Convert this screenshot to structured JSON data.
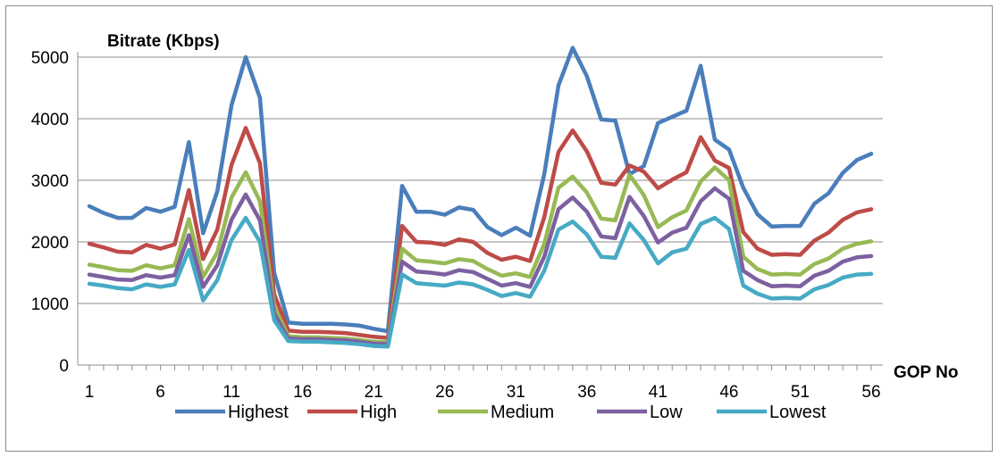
{
  "chart_data": {
    "type": "line",
    "ylabel": "Bitrate (Kbps)",
    "xlabel": "GOP No",
    "ylim": [
      0,
      5000
    ],
    "yticks": [
      0,
      1000,
      2000,
      3000,
      4000,
      5000
    ],
    "xlim": [
      1,
      56
    ],
    "xtick_labels": [
      1,
      6,
      11,
      16,
      21,
      26,
      31,
      36,
      41,
      46,
      51,
      56
    ],
    "grid": "horizontal",
    "legend_position": "bottom",
    "x": [
      1,
      2,
      3,
      4,
      5,
      6,
      7,
      8,
      9,
      10,
      11,
      12,
      13,
      14,
      15,
      16,
      17,
      18,
      19,
      20,
      21,
      22,
      23,
      24,
      25,
      26,
      27,
      28,
      29,
      30,
      31,
      32,
      33,
      34,
      35,
      36,
      37,
      38,
      39,
      40,
      41,
      42,
      43,
      44,
      45,
      46,
      47,
      48,
      49,
      50,
      51,
      52,
      53,
      54,
      55,
      56
    ],
    "series": [
      {
        "name": "Highest",
        "color": "#4a7ebb",
        "values": [
          2580,
          2470,
          2390,
          2390,
          2550,
          2490,
          2570,
          3620,
          2140,
          2820,
          4220,
          5000,
          4340,
          1500,
          690,
          670,
          670,
          670,
          660,
          640,
          590,
          550,
          2910,
          2490,
          2490,
          2440,
          2560,
          2520,
          2240,
          2110,
          2230,
          2100,
          3100,
          4540,
          5150,
          4690,
          3990,
          3970,
          3100,
          3230,
          3930,
          4030,
          4130,
          4860,
          3660,
          3500,
          2880,
          2450,
          2250,
          2260,
          2260,
          2620,
          2790,
          3120,
          3330,
          3430
        ]
      },
      {
        "name": "High",
        "color": "#be4b48",
        "values": [
          1970,
          1910,
          1840,
          1830,
          1950,
          1890,
          1960,
          2840,
          1720,
          2200,
          3250,
          3850,
          3280,
          1150,
          560,
          540,
          540,
          530,
          520,
          490,
          460,
          440,
          2260,
          2000,
          1990,
          1950,
          2040,
          2000,
          1820,
          1710,
          1760,
          1690,
          2400,
          3460,
          3810,
          3470,
          2960,
          2930,
          3240,
          3140,
          2870,
          3010,
          3130,
          3700,
          3320,
          3200,
          2160,
          1890,
          1790,
          1800,
          1790,
          2020,
          2150,
          2360,
          2480,
          2530
        ]
      },
      {
        "name": "Medium",
        "color": "#98b954",
        "values": [
          1630,
          1590,
          1540,
          1530,
          1620,
          1570,
          1620,
          2370,
          1430,
          1830,
          2720,
          3130,
          2660,
          950,
          470,
          450,
          450,
          440,
          430,
          410,
          380,
          370,
          1890,
          1700,
          1680,
          1650,
          1720,
          1690,
          1560,
          1450,
          1490,
          1430,
          1970,
          2880,
          3060,
          2800,
          2380,
          2350,
          3090,
          2760,
          2240,
          2400,
          2510,
          2980,
          3210,
          3000,
          1760,
          1560,
          1470,
          1480,
          1470,
          1640,
          1730,
          1890,
          1970,
          2010
        ]
      },
      {
        "name": "Low",
        "color": "#7d60a0",
        "values": [
          1470,
          1430,
          1390,
          1380,
          1460,
          1420,
          1460,
          2110,
          1270,
          1620,
          2360,
          2770,
          2350,
          840,
          430,
          420,
          420,
          410,
          400,
          380,
          350,
          340,
          1680,
          1520,
          1500,
          1470,
          1540,
          1510,
          1400,
          1290,
          1330,
          1270,
          1760,
          2530,
          2720,
          2490,
          2090,
          2060,
          2730,
          2420,
          1990,
          2150,
          2230,
          2660,
          2870,
          2700,
          1530,
          1380,
          1280,
          1290,
          1280,
          1450,
          1530,
          1680,
          1750,
          1770
        ]
      },
      {
        "name": "Lowest",
        "color": "#46aac5",
        "values": [
          1320,
          1290,
          1250,
          1230,
          1310,
          1270,
          1310,
          1870,
          1050,
          1380,
          2030,
          2390,
          2000,
          730,
          390,
          380,
          380,
          370,
          360,
          340,
          310,
          300,
          1470,
          1330,
          1310,
          1290,
          1340,
          1310,
          1220,
          1120,
          1170,
          1110,
          1530,
          2200,
          2330,
          2120,
          1760,
          1740,
          2300,
          2030,
          1650,
          1830,
          1890,
          2290,
          2390,
          2210,
          1290,
          1160,
          1080,
          1090,
          1080,
          1230,
          1300,
          1420,
          1470,
          1480
        ]
      }
    ]
  }
}
